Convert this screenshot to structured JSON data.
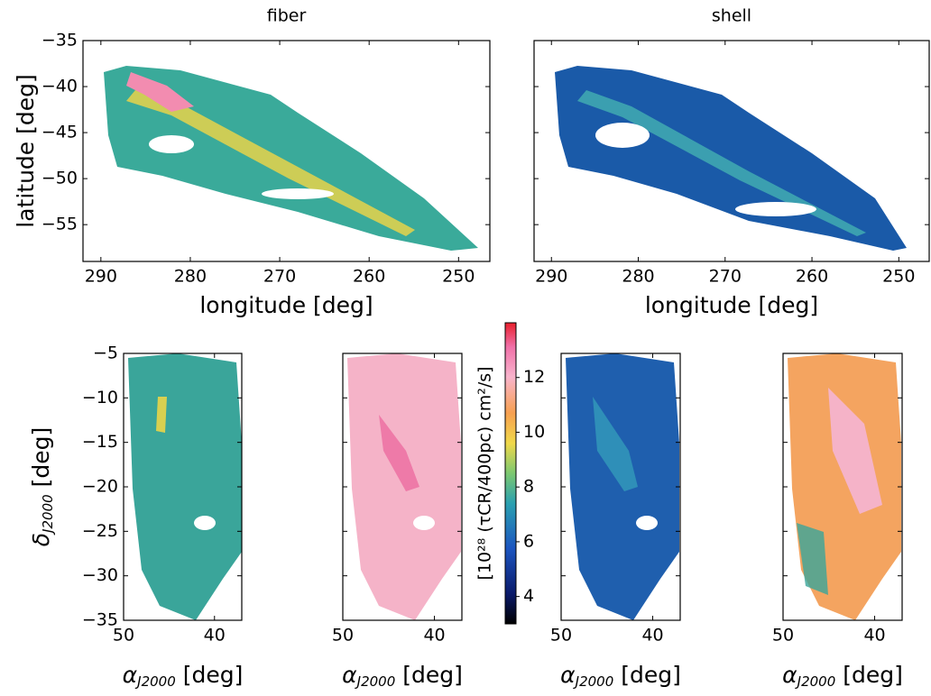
{
  "chart_data": [
    {
      "type": "map",
      "title": "fiber",
      "xlabel": "longitude [deg]",
      "ylabel": "latitude [deg]",
      "xlim": [
        292,
        246.5
      ],
      "ylim": [
        -59,
        -35
      ],
      "xticks": [
        290,
        280,
        270,
        260,
        250
      ],
      "yticks": [
        {
          "value": -35,
          "label": "−35"
        },
        {
          "value": -40,
          "label": "−40"
        },
        {
          "value": -45,
          "label": "−45"
        },
        {
          "value": -50,
          "label": "−50"
        },
        {
          "value": -55,
          "label": "−55"
        }
      ],
      "ytick_labels": true
    },
    {
      "type": "map",
      "title": "shell",
      "xlabel": "longitude [deg]",
      "xlim": [
        292,
        246.5
      ],
      "ylim": [
        -59,
        -35
      ],
      "xticks": [
        290,
        280,
        270,
        260,
        250
      ],
      "yticks": [
        -35,
        -40,
        -45,
        -50,
        -55
      ],
      "ytick_labels": false
    },
    {
      "type": "map",
      "xlabel": {
        "symbol": "α",
        "subscript": "J2000",
        "unit": " [deg]"
      },
      "ylabel": {
        "symbol": "δ",
        "subscript": "J2000",
        "unit": " [deg]"
      },
      "xlim": [
        50,
        37
      ],
      "ylim": [
        -35,
        -5
      ],
      "xticks": [
        50,
        40
      ],
      "yticks": [
        {
          "value": -5,
          "label": "−5"
        },
        {
          "value": -10,
          "label": "−10"
        },
        {
          "value": -15,
          "label": "−15"
        },
        {
          "value": -20,
          "label": "−20"
        },
        {
          "value": -25,
          "label": "−25"
        },
        {
          "value": -30,
          "label": "−30"
        },
        {
          "value": -35,
          "label": "−35"
        }
      ],
      "ytick_labels": true
    },
    {
      "type": "map",
      "xlabel": {
        "symbol": "α",
        "subscript": "J2000",
        "unit": " [deg]"
      },
      "xlim": [
        50,
        37
      ],
      "ylim": [
        -35,
        -5
      ],
      "xticks": [
        50,
        40
      ],
      "yticks": [
        -5,
        -10,
        -15,
        -20,
        -25,
        -30,
        -35
      ],
      "ytick_labels": false
    },
    {
      "type": "map",
      "xlabel": {
        "symbol": "α",
        "subscript": "J2000",
        "unit": " [deg]"
      },
      "xlim": [
        50,
        37
      ],
      "ylim": [
        -35,
        -5
      ],
      "xticks": [
        50,
        40
      ],
      "yticks": [
        -5,
        -10,
        -15,
        -20,
        -25,
        -30,
        -35
      ],
      "ytick_labels": false
    },
    {
      "type": "map",
      "xlabel": {
        "symbol": "α",
        "subscript": "J2000",
        "unit": " [deg]"
      },
      "xlim": [
        50,
        37
      ],
      "ylim": [
        -35,
        -5
      ],
      "xticks": [
        50,
        40
      ],
      "yticks": [
        -5,
        -10,
        -15,
        -20,
        -25,
        -30,
        -35
      ],
      "ytick_labels": false
    },
    {
      "type": "colorbar",
      "label": "[10²⁸ (τCR/400pc) cm²/s]",
      "ylim": [
        3,
        14
      ],
      "yticks": [
        4,
        6,
        8,
        10,
        12
      ]
    }
  ]
}
